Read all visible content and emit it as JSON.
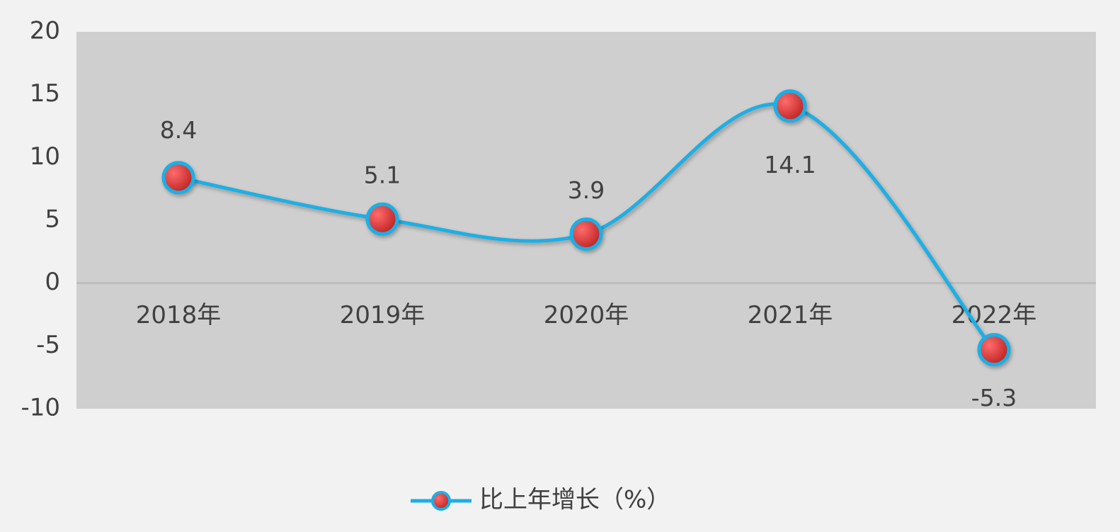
{
  "chart_data": {
    "type": "line",
    "categories": [
      "2018年",
      "2019年",
      "2020年",
      "2021年",
      "2022年"
    ],
    "series": [
      {
        "name": "比上年增长（%）",
        "color": "#1aafe6",
        "marker_color": "#e83a3a",
        "values": [
          8.4,
          5.1,
          3.9,
          14.1,
          -5.3
        ]
      }
    ],
    "ylim": [
      -10,
      20
    ],
    "yticks": [
      -10,
      -5,
      0,
      5,
      10,
      15,
      20
    ],
    "grid": false,
    "legend": "bottom",
    "smooth": true
  }
}
